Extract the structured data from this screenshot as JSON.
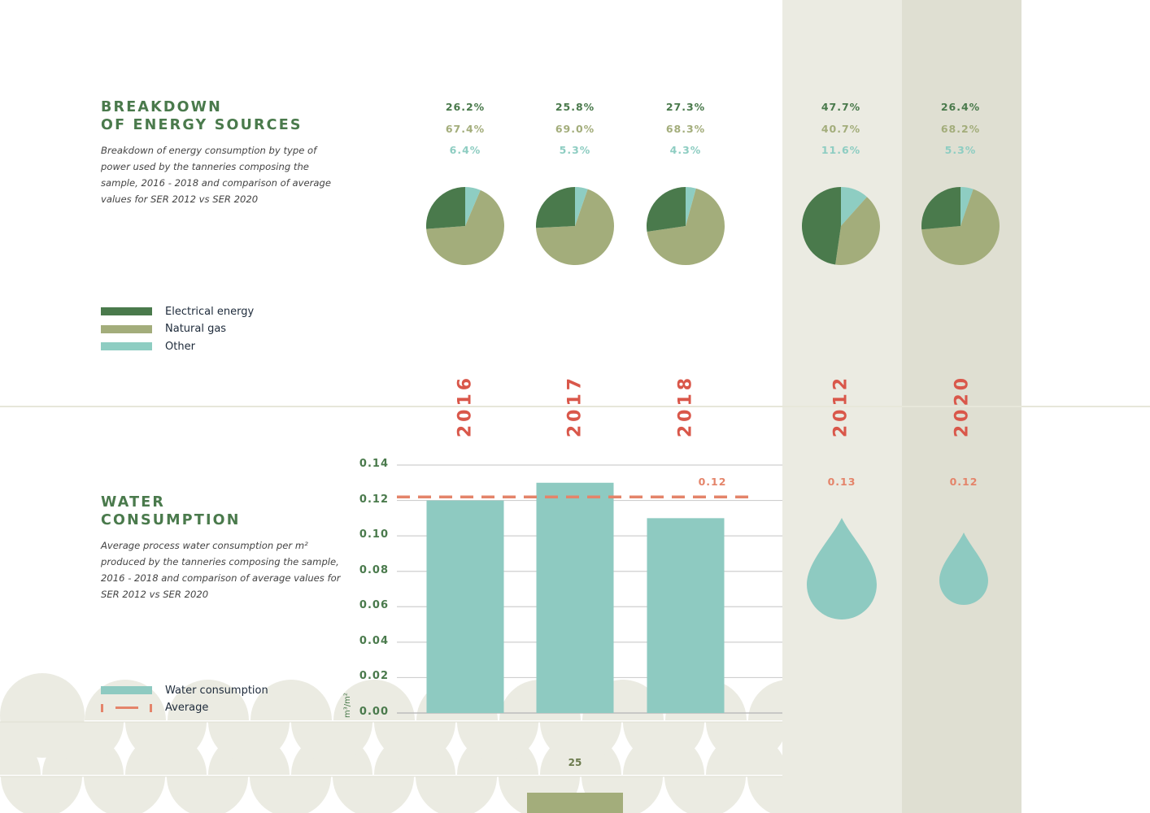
{
  "energy": {
    "title_line1": "BREAKDOWN",
    "title_line2": "OF ENERGY SOURCES",
    "description": "Breakdown of energy consumption by type of power used by the tanneries composing the sample, 2016 - 2018 and comparison of average values for SER 2012 vs SER 2020",
    "legend": [
      {
        "label": "Electrical energy",
        "color": "#4a7a4c"
      },
      {
        "label": "Natural gas",
        "color": "#a3ad7b"
      },
      {
        "label": "Other",
        "color": "#8ecdc2"
      }
    ],
    "pies": [
      {
        "year": "2016",
        "electrical": "26.2%",
        "gas": "67.4%",
        "other": "6.4%"
      },
      {
        "year": "2017",
        "electrical": "25.8%",
        "gas": "69.0%",
        "other": "5.3%"
      },
      {
        "year": "2018",
        "electrical": "27.3%",
        "gas": "68.3%",
        "other": "4.3%"
      },
      {
        "year": "2012",
        "electrical": "47.7%",
        "gas": "40.7%",
        "other": "11.6%"
      },
      {
        "year": "2020",
        "electrical": "26.4%",
        "gas": "68.2%",
        "other": "5.3%"
      }
    ]
  },
  "water": {
    "title_line1": "WATER",
    "title_line2": "CONSUMPTION",
    "description": "Average process water consumption per m² produced by the tanneries composing the sample, 2016 - 2018 and comparison of average values for SER 2012 vs SER 2020",
    "legend": [
      {
        "label": "Water consumption",
        "color": "#8ecac1"
      },
      {
        "label": "Average",
        "color": "#e4846a"
      }
    ],
    "unit": "m³/m²",
    "average_label": "0.12",
    "ser2012_label": "0.13",
    "ser2020_label": "0.12"
  },
  "years": [
    "2016",
    "2017",
    "2018",
    "2012",
    "2020"
  ],
  "page_number": "25",
  "colors": {
    "electrical": "#4a7a4c",
    "gas": "#a3ad7b",
    "other": "#8ecdc2",
    "water_bar": "#8ecac1",
    "average_line": "#e4846a",
    "year_labels": "#d9574a",
    "band_2012": "#ebebe2",
    "band_2020": "#dfdfd2"
  },
  "chart_data": [
    {
      "type": "pie",
      "categories": [
        "Electrical energy",
        "Natural gas",
        "Other"
      ],
      "series": [
        {
          "name": "2016",
          "values": [
            26.2,
            67.4,
            6.4
          ]
        },
        {
          "name": "2017",
          "values": [
            25.8,
            69.0,
            5.3
          ]
        },
        {
          "name": "2018",
          "values": [
            27.3,
            68.3,
            4.3
          ]
        },
        {
          "name": "2012",
          "values": [
            47.7,
            40.7,
            11.6
          ]
        },
        {
          "name": "2020",
          "values": [
            26.4,
            68.2,
            5.3
          ]
        }
      ],
      "title": "BREAKDOWN OF ENERGY SOURCES",
      "legend_position": "bottom-left"
    },
    {
      "type": "bar",
      "categories": [
        "2016",
        "2017",
        "2018"
      ],
      "series": [
        {
          "name": "Water consumption",
          "values": [
            0.12,
            0.13,
            0.11
          ]
        }
      ],
      "average": 0.122,
      "average_label": "0.12",
      "comparison": {
        "2012": 0.13,
        "2020": 0.12
      },
      "ylabel": "m³/m²",
      "ylim": [
        0,
        0.14
      ],
      "yticks": [
        "0.00",
        "0.02",
        "0.04",
        "0.06",
        "0.08",
        "0.10",
        "0.12",
        "0.14"
      ],
      "grid": true,
      "title": "WATER CONSUMPTION",
      "legend_position": "bottom-left"
    }
  ]
}
